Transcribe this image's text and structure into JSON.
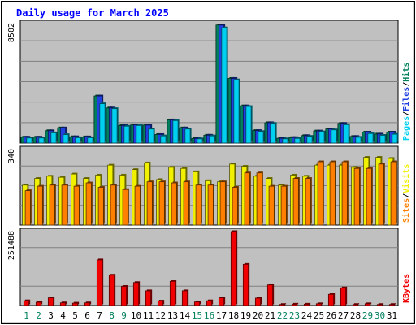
{
  "chart_data": {
    "type": "bar",
    "title": "Daily usage for March 2025",
    "categories": [
      "1",
      "2",
      "3",
      "4",
      "5",
      "6",
      "7",
      "8",
      "9",
      "10",
      "11",
      "12",
      "13",
      "14",
      "15",
      "16",
      "17",
      "18",
      "19",
      "20",
      "21",
      "22",
      "23",
      "24",
      "25",
      "26",
      "27",
      "28",
      "29",
      "30",
      "31"
    ],
    "weekend_categories": [
      "1",
      "2",
      "8",
      "9",
      "15",
      "16",
      "22",
      "23",
      "29",
      "30"
    ],
    "panels": [
      {
        "id": "hits-files-pages",
        "ymax_label": "8502",
        "ymax": 8502,
        "legend": [
          "Pages",
          "/",
          "Files",
          "/",
          "Hits"
        ],
        "series": [
          {
            "name": "Hits",
            "color": "#00805c",
            "values": [
              420,
              420,
              880,
              1080,
              450,
              440,
              3350,
              2500,
              1250,
              1300,
              1280,
              610,
              1650,
              1080,
              330,
              560,
              8400,
              4600,
              2650,
              890,
              1450,
              340,
              390,
              530,
              860,
              1010,
              1400,
              470,
              780,
              640,
              780
            ]
          },
          {
            "name": "Files",
            "color": "#2040e0",
            "values": [
              420,
              420,
              880,
              1080,
              450,
              440,
              3350,
              2500,
              1250,
              1300,
              1280,
              610,
              1650,
              1080,
              330,
              560,
              8400,
              4600,
              2650,
              890,
              1450,
              340,
              390,
              530,
              860,
              1010,
              1400,
              470,
              780,
              640,
              780
            ]
          },
          {
            "name": "Pages",
            "color": "#00d0f0",
            "values": [
              360,
              360,
              730,
              600,
              380,
              380,
              2800,
              2450,
              1200,
              1250,
              1000,
              510,
              1600,
              1000,
              300,
              510,
              8200,
              4500,
              2600,
              820,
              1400,
              300,
              330,
              480,
              800,
              940,
              1310,
              410,
              680,
              550,
              630
            ]
          }
        ]
      },
      {
        "id": "visits-sites",
        "ymax_label": "340",
        "ymax": 340,
        "legend": [
          "Sites",
          "/",
          "Visits"
        ],
        "series": [
          {
            "name": "Visits",
            "color": "#f0f000",
            "values": [
              180,
              210,
              220,
              215,
              230,
              210,
              225,
              270,
              225,
              250,
              280,
              205,
              260,
              255,
              240,
              200,
              195,
              275,
              265,
              220,
              210,
              180,
              225,
              220,
              270,
              270,
              270,
              260,
              305,
              305,
              300
            ]
          },
          {
            "name": "Sites",
            "color": "#ff8000",
            "values": [
              155,
              175,
              180,
              180,
              175,
              190,
              170,
              180,
              160,
              175,
              195,
              195,
              190,
              195,
              180,
              180,
              195,
              170,
              235,
              235,
              175,
              175,
              210,
              210,
              285,
              285,
              285,
              255,
              255,
              275,
              285
            ]
          }
        ]
      },
      {
        "id": "kbytes",
        "ymax_label": "251488",
        "ymax": 251488,
        "legend": [
          "KBytes"
        ],
        "series": [
          {
            "name": "KBytes",
            "color": "#f00000",
            "values": [
              16000,
              11000,
              26000,
              9000,
              8000,
              9000,
              155000,
              103000,
              65000,
              78000,
              50000,
              15000,
              82000,
              50000,
              12000,
              16000,
              26000,
              251488,
              140000,
              25000,
              70000,
              3500,
              4500,
              4500,
              6000,
              38000,
              60000,
              3500,
              6000,
              3500,
              3500
            ]
          }
        ]
      }
    ]
  }
}
